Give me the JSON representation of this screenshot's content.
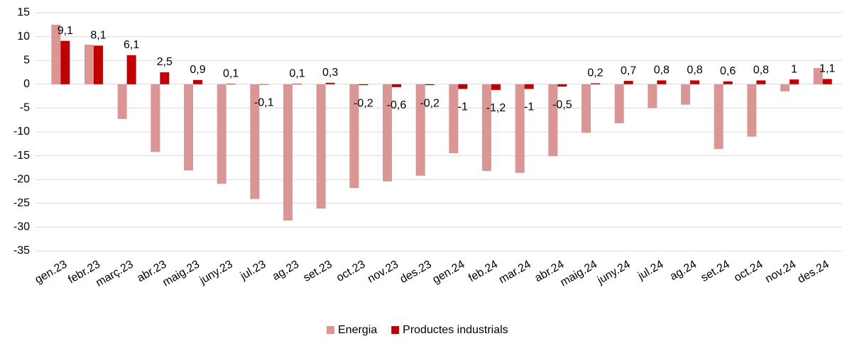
{
  "chart_data": {
    "type": "bar",
    "categories": [
      "gen.23",
      "febr.23",
      "març.23",
      "abr.23",
      "maig.23",
      "juny.23",
      "jul.23",
      "ag.23",
      "set.23",
      "oct.23",
      "nov.23",
      "des.23",
      "gen.24",
      "feb.24",
      "mar.24",
      "abr.24",
      "maig.24",
      "juny.24",
      "jul.24",
      "ag.24",
      "set.24",
      "oct.24",
      "nov.24",
      "des.24"
    ],
    "series": [
      {
        "name": "Energia",
        "color": "#d99694",
        "values": [
          12.5,
          8.3,
          -7.3,
          -14.2,
          -18.1,
          -20.9,
          -24.1,
          -28.6,
          -26.1,
          -21.8,
          -20.4,
          -19.2,
          -14.5,
          -18.2,
          -18.6,
          -15.1,
          -10.2,
          -8.2,
          -5.0,
          -4.3,
          -13.6,
          -11.0,
          -1.5,
          3.4
        ]
      },
      {
        "name": "Productes industrials",
        "color": "#c00000",
        "values": [
          9.1,
          8.1,
          6.1,
          2.5,
          0.9,
          0.1,
          -0.1,
          0.1,
          0.3,
          -0.2,
          -0.6,
          -0.2,
          -1,
          -1.2,
          -1,
          -0.5,
          0.2,
          0.7,
          0.8,
          0.8,
          0.6,
          0.8,
          1,
          1.1
        ],
        "value_labels": [
          "9,1",
          "8,1",
          "6,1",
          "2,5",
          "0,9",
          "0,1",
          "-0,1",
          "0,1",
          "0,3",
          "-0,2",
          "-0,6",
          "-0,2",
          "-1",
          "-1,2",
          "-1",
          "-0,5",
          "0,2",
          "0,7",
          "0,8",
          "0,8",
          "0,6",
          "0,8",
          "1",
          "1,1"
        ]
      }
    ],
    "ylim": [
      -35,
      15
    ],
    "yticks": [
      -35,
      -30,
      -25,
      -20,
      -15,
      -10,
      -5,
      0,
      5,
      10,
      15
    ],
    "grid": true,
    "legend": "bottom"
  }
}
